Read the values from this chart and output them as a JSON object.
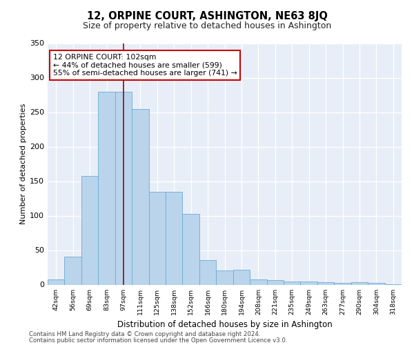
{
  "title": "12, ORPINE COURT, ASHINGTON, NE63 8JQ",
  "subtitle": "Size of property relative to detached houses in Ashington",
  "xlabel": "Distribution of detached houses by size in Ashington",
  "ylabel": "Number of detached properties",
  "bar_labels": [
    "42sqm",
    "56sqm",
    "69sqm",
    "83sqm",
    "97sqm",
    "111sqm",
    "125sqm",
    "138sqm",
    "152sqm",
    "166sqm",
    "180sqm",
    "194sqm",
    "208sqm",
    "221sqm",
    "235sqm",
    "249sqm",
    "263sqm",
    "277sqm",
    "290sqm",
    "304sqm",
    "318sqm"
  ],
  "bar_heights": [
    8,
    41,
    158,
    280,
    280,
    255,
    135,
    135,
    103,
    36,
    21,
    22,
    8,
    7,
    5,
    5,
    4,
    3,
    4,
    3,
    1
  ],
  "bar_color": "#bad4ec",
  "bar_edgecolor": "#6aabd2",
  "vline_x": 4.0,
  "vline_color": "#8b1a1a",
  "annotation_text": "12 ORPINE COURT: 102sqm\n← 44% of detached houses are smaller (599)\n55% of semi-detached houses are larger (741) →",
  "annotation_box_color": "#ffffff",
  "annotation_box_edgecolor": "#cc0000",
  "ylim": [
    0,
    350
  ],
  "yticks": [
    0,
    50,
    100,
    150,
    200,
    250,
    300,
    350
  ],
  "bg_color": "#e8eef8",
  "footer_line1": "Contains HM Land Registry data © Crown copyright and database right 2024.",
  "footer_line2": "Contains public sector information licensed under the Open Government Licence v3.0."
}
